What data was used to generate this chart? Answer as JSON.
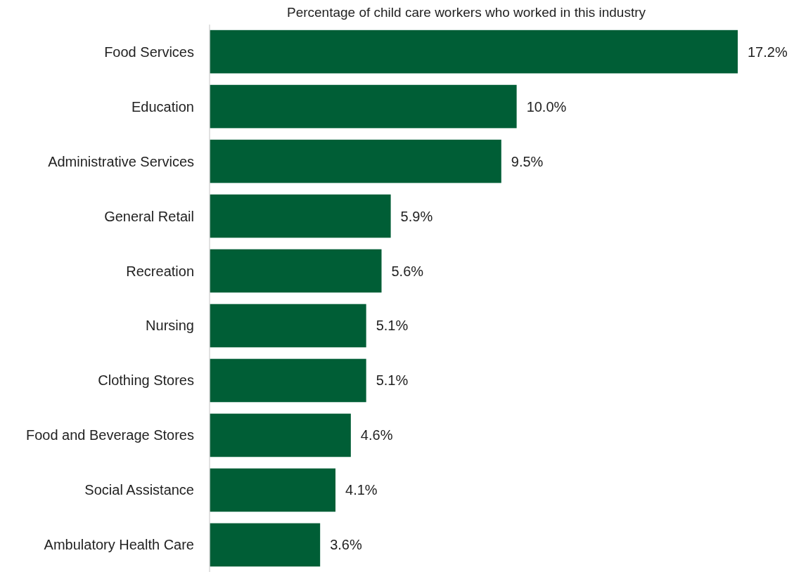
{
  "chart_data": {
    "type": "bar",
    "orientation": "horizontal",
    "title": "Percentage of child care workers who worked in this industry",
    "categories": [
      "Food Services",
      "Education",
      "Administrative Services",
      "General Retail",
      "Recreation",
      "Nursing",
      "Clothing Stores",
      "Food and Beverage Stores",
      "Social Assistance",
      "Ambulatory Health Care"
    ],
    "values": [
      17.2,
      10.0,
      9.5,
      5.9,
      5.6,
      5.1,
      5.1,
      4.6,
      4.1,
      3.6
    ],
    "value_labels": [
      "17.2%",
      "10.0%",
      "9.5%",
      "5.9%",
      "5.6%",
      "5.1%",
      "5.1%",
      "4.6%",
      "4.1%",
      "3.6%"
    ],
    "color": "#005e36"
  }
}
